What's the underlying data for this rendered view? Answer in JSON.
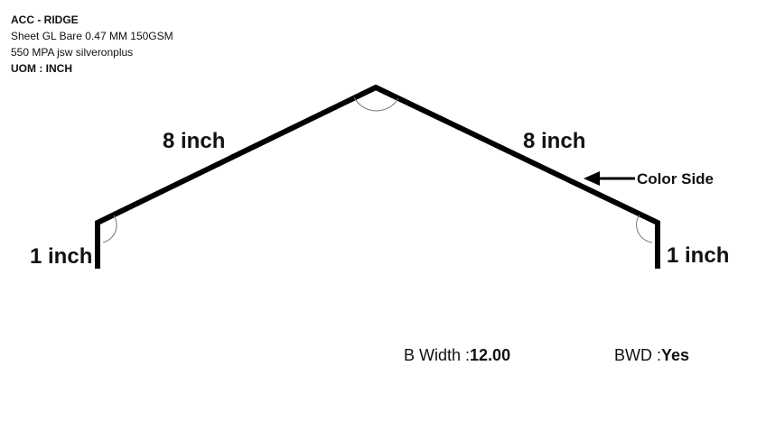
{
  "header": {
    "title": "ACC - RIDGE",
    "material_line1": "Sheet GL Bare 0.47 MM 150GSM",
    "material_line2": "550 MPA jsw silveronplus",
    "uom": "UOM : INCH"
  },
  "profile": {
    "left_slope_label": "8 inch",
    "right_slope_label": "8 inch",
    "left_leg_label": "1 inch",
    "right_leg_label": "1 inch",
    "color_side_label": "Color Side"
  },
  "footer": {
    "b_width_label": "B Width :",
    "b_width_value": "12.00",
    "bwd_label": "BWD :",
    "bwd_value": "Yes"
  }
}
